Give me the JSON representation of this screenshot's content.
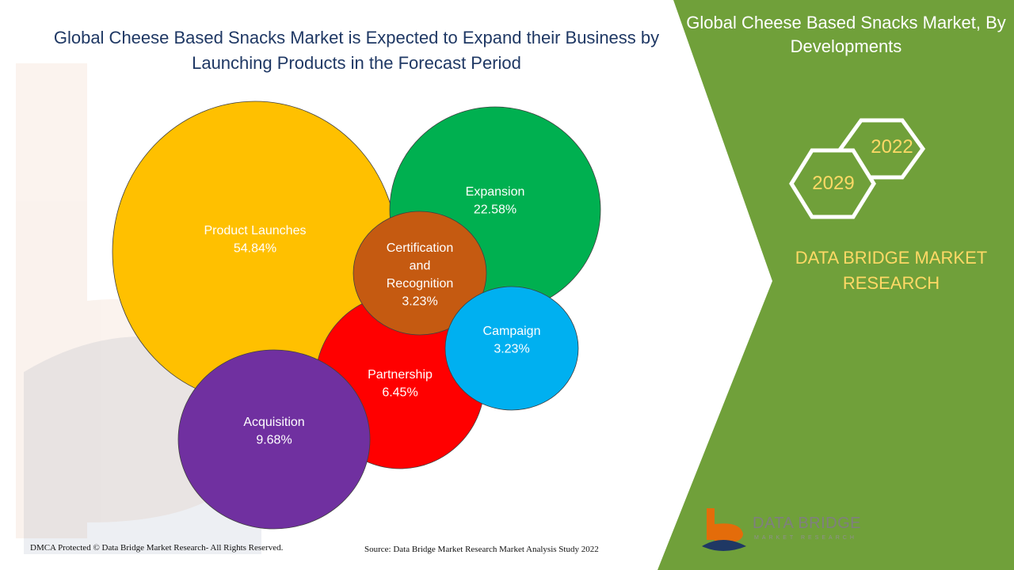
{
  "title": "Global Cheese Based Snacks Market is Expected to Expand their Business by Launching Products in the Forecast Period",
  "side_panel": {
    "title": "Global Cheese Based Snacks Market, By Developments",
    "year_start": "2022",
    "year_end": "2029",
    "brand": "DATA BRIDGE MARKET RESEARCH",
    "panel_color": "#70a03a",
    "accent_color": "#ffd966"
  },
  "logo": {
    "name": "DATA BRIDGE",
    "subtitle": "MARKET RESEARCH"
  },
  "footer": {
    "copyright": "DMCA Protected © Data Bridge Market Research- All Rights Reserved.",
    "source": "Source: Data Bridge Market Research Market Analysis Study 2022"
  },
  "chart_data": {
    "type": "bubble",
    "title": "",
    "unit": "%",
    "series": [
      {
        "label": "Product Launches",
        "value": 54.84,
        "display": "54.84%",
        "color": "#ffc000"
      },
      {
        "label": "Expansion",
        "value": 22.58,
        "display": "22.58%",
        "color": "#00b050"
      },
      {
        "label": "Acquisition",
        "value": 9.68,
        "display": "9.68%",
        "color": "#7030a0"
      },
      {
        "label": "Partnership",
        "value": 6.45,
        "display": "6.45%",
        "color": "#ff0000"
      },
      {
        "label": "Certification and Recognition",
        "value": 3.23,
        "display": "3.23%",
        "color": "#c55a11"
      },
      {
        "label": "Campaign",
        "value": 3.23,
        "display": "3.23%",
        "color": "#00b0f0"
      }
    ]
  }
}
